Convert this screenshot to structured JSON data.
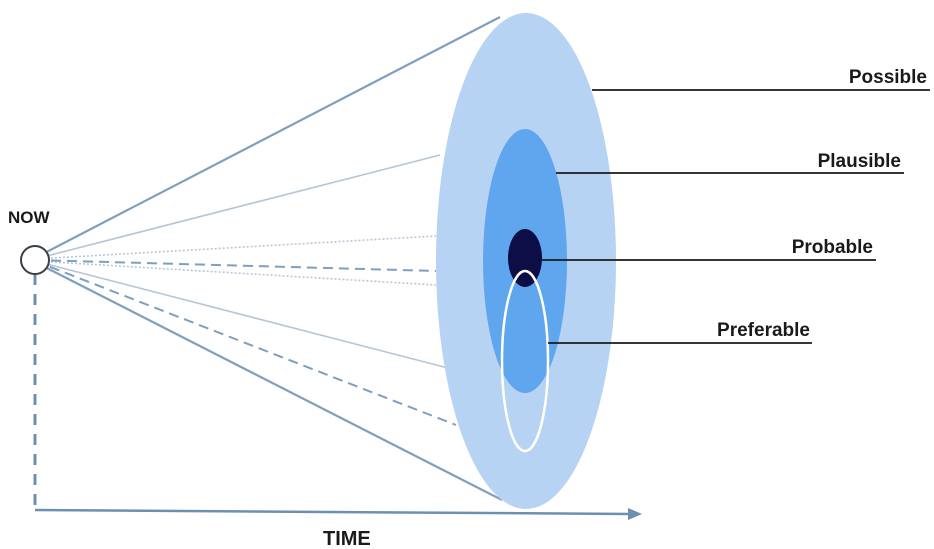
{
  "diagram": {
    "origin_label": "NOW",
    "axis_label": "TIME",
    "cone": [
      {
        "name": "possible",
        "label": "Possible",
        "color": "#b7d3f3"
      },
      {
        "name": "plausible",
        "label": "Plausible",
        "color": "#5fa6ee"
      },
      {
        "name": "probable",
        "label": "Probable",
        "color": "#0d0e45"
      },
      {
        "name": "preferable",
        "label": "Preferable",
        "color": "#ffffff"
      }
    ],
    "ray_color": "#7f9fbf",
    "axis_color": "#6e8fb0",
    "leader_color": "#1a1a1a"
  }
}
